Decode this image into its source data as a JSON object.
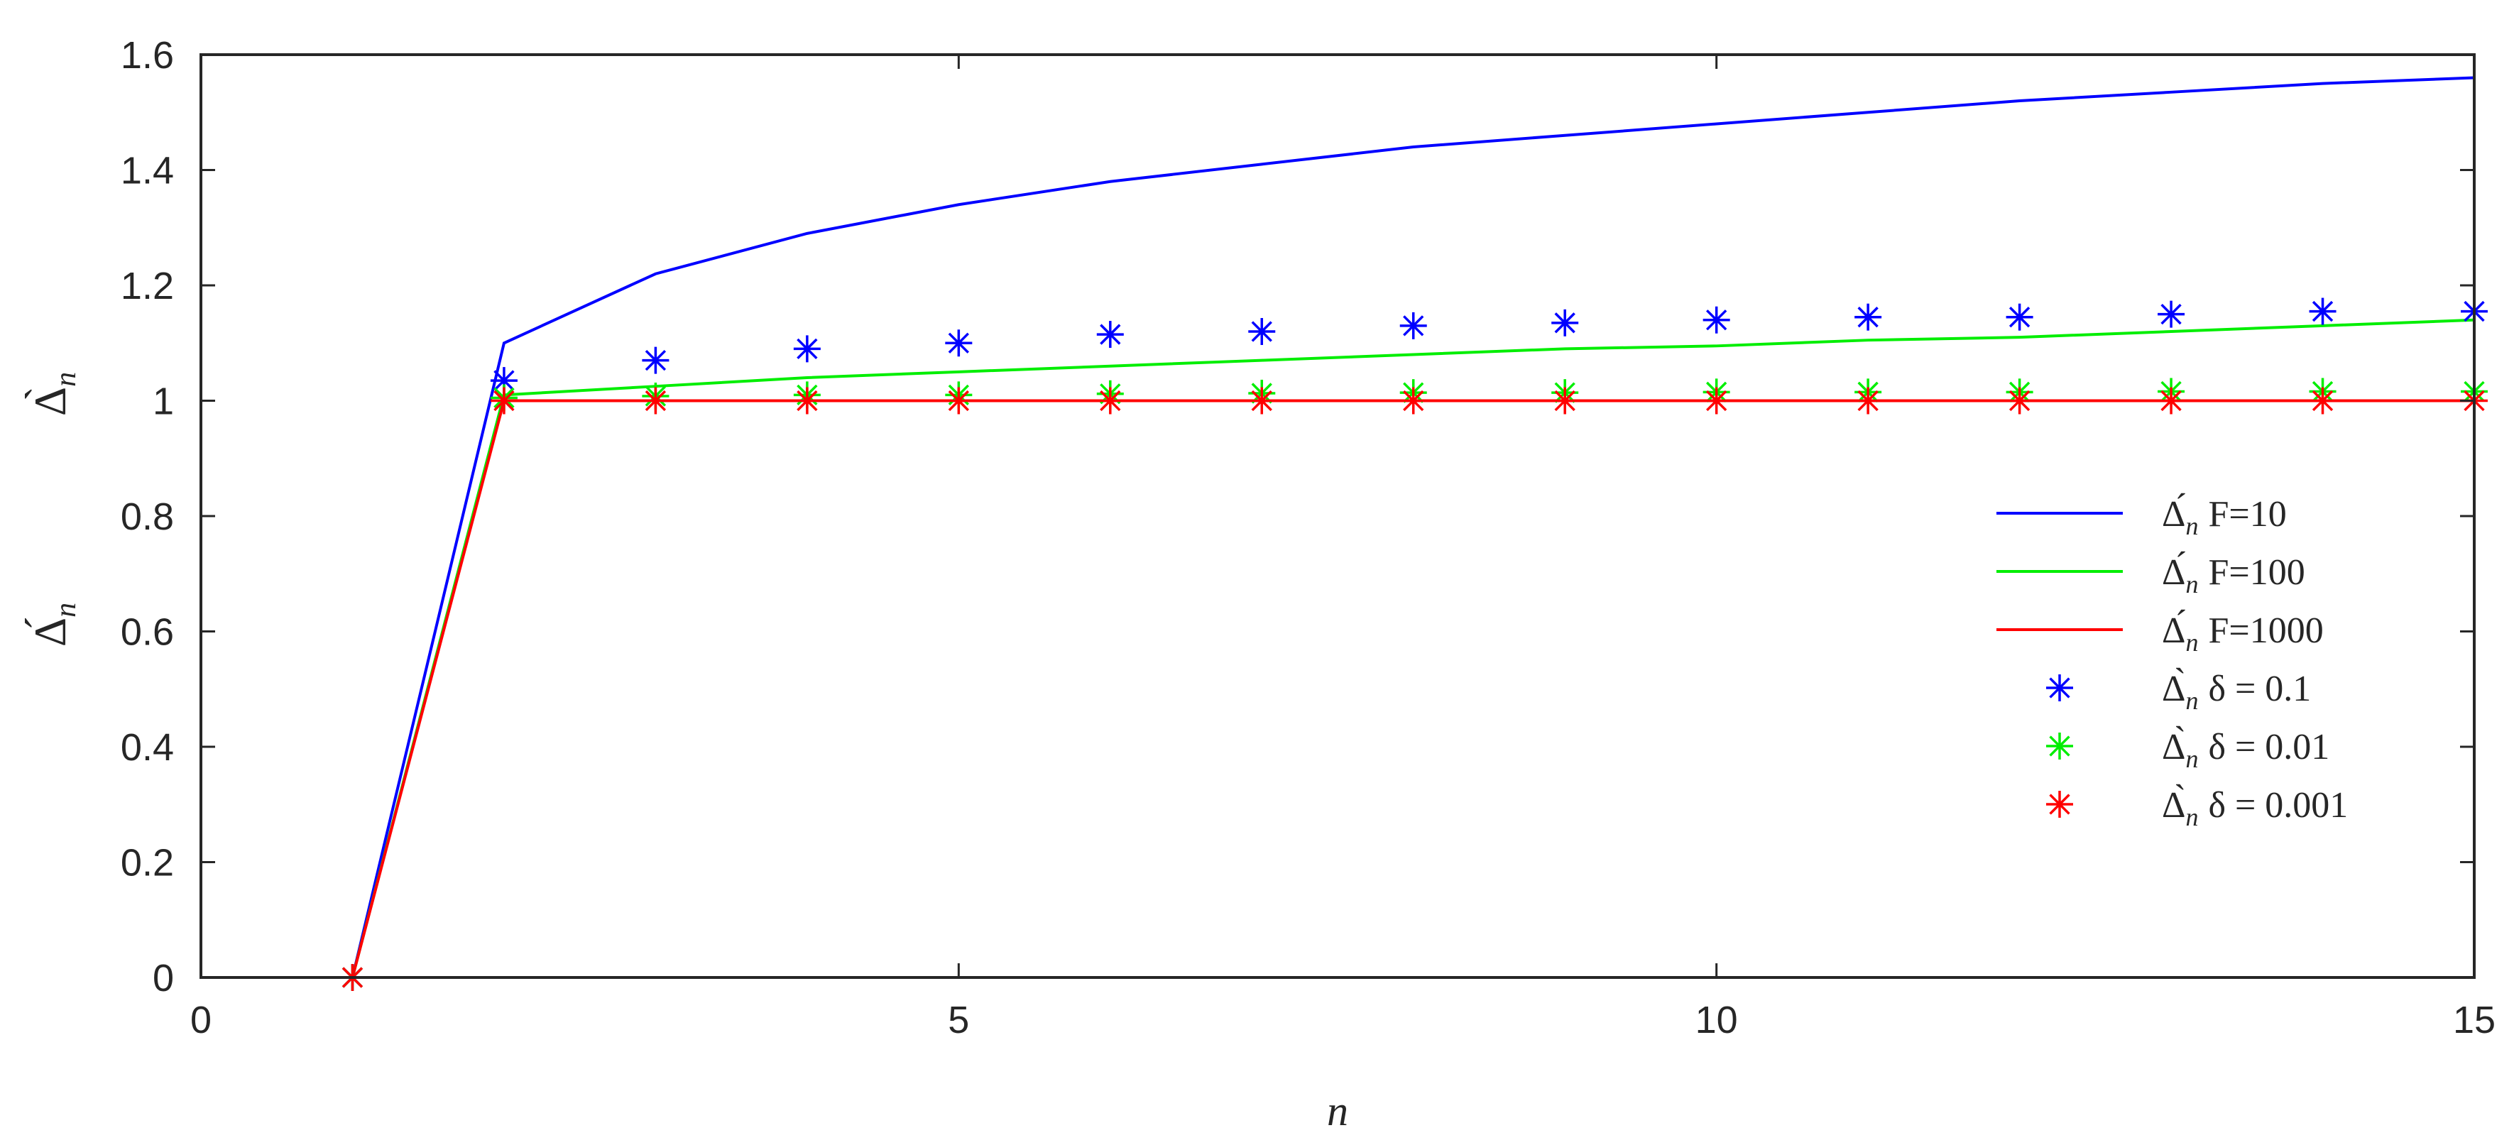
{
  "chart_data": {
    "type": "line",
    "title": "",
    "xlabel": "n",
    "ylabel_top": "Δ̀",
    "ylabel_top_sub": "n",
    "ylabel_bottom": "Δ́",
    "ylabel_bottom_sub": "n",
    "xlim": [
      0,
      15
    ],
    "ylim": [
      0,
      1.6
    ],
    "x_ticks": [
      0,
      5,
      10,
      15
    ],
    "x_tick_labels": [
      "0",
      "5",
      "10",
      "15"
    ],
    "y_ticks": [
      0,
      0.2,
      0.4,
      0.6,
      0.8,
      1,
      1.2,
      1.4,
      1.6
    ],
    "y_tick_labels": [
      "0",
      "0.2",
      "0.4",
      "0.6",
      "0.8",
      "1",
      "1.2",
      "1.4",
      "1.6"
    ],
    "grid": false,
    "box": true,
    "legend_position": "right",
    "x": [
      1,
      2,
      3,
      4,
      5,
      6,
      7,
      8,
      9,
      10,
      11,
      12,
      13,
      14,
      15
    ],
    "series": [
      {
        "name": "Δ́ F=10",
        "legend_symbol": "Δ́",
        "legend_sub": "n",
        "legend_text": "F=10",
        "style": "line",
        "color": "#0000ff",
        "values": [
          0,
          1.1,
          1.22,
          1.29,
          1.34,
          1.38,
          1.41,
          1.44,
          1.46,
          1.48,
          1.5,
          1.52,
          1.535,
          1.55,
          1.56
        ]
      },
      {
        "name": "Δ́ F=100",
        "legend_symbol": "Δ́",
        "legend_sub": "n",
        "legend_text": "F=100",
        "style": "line",
        "color": "#00ee00",
        "values": [
          0,
          1.01,
          1.025,
          1.04,
          1.05,
          1.06,
          1.07,
          1.08,
          1.09,
          1.095,
          1.105,
          1.11,
          1.12,
          1.13,
          1.14
        ]
      },
      {
        "name": "Δ́ F=1000",
        "legend_symbol": "Δ́",
        "legend_sub": "n",
        "legend_text": "F=1000",
        "style": "line",
        "color": "#ff0000",
        "values": [
          0,
          1.0,
          1.0,
          1.0,
          1.0,
          1.0,
          1.0,
          1.0,
          1.0,
          1.0,
          1.0,
          1.0,
          1.0,
          1.0,
          1.0
        ]
      },
      {
        "name": "Δ̀ δ = 0.1",
        "legend_symbol": "Δ̀",
        "legend_sub": "n",
        "legend_text": "δ = 0.1",
        "style": "marker",
        "color": "#0000ff",
        "values": [
          0,
          1.035,
          1.07,
          1.09,
          1.1,
          1.115,
          1.12,
          1.13,
          1.135,
          1.14,
          1.145,
          1.145,
          1.15,
          1.155,
          1.155
        ]
      },
      {
        "name": "Δ̀ δ = 0.01",
        "legend_symbol": "Δ̀",
        "legend_sub": "n",
        "legend_text": "δ = 0.01",
        "style": "marker",
        "color": "#00ee00",
        "values": [
          0,
          1.005,
          1.008,
          1.01,
          1.01,
          1.012,
          1.013,
          1.014,
          1.014,
          1.015,
          1.015,
          1.015,
          1.016,
          1.016,
          1.016
        ]
      },
      {
        "name": "Δ̀ δ = 0.001",
        "legend_symbol": "Δ̀",
        "legend_sub": "n",
        "legend_text": "δ = 0.001",
        "style": "marker",
        "color": "#ff0000",
        "values": [
          0,
          1.0,
          1.0,
          1.0,
          1.0,
          1.0,
          1.0,
          1.0,
          1.0,
          1.0,
          1.0,
          1.0,
          1.0,
          1.0,
          1.0
        ]
      }
    ]
  }
}
